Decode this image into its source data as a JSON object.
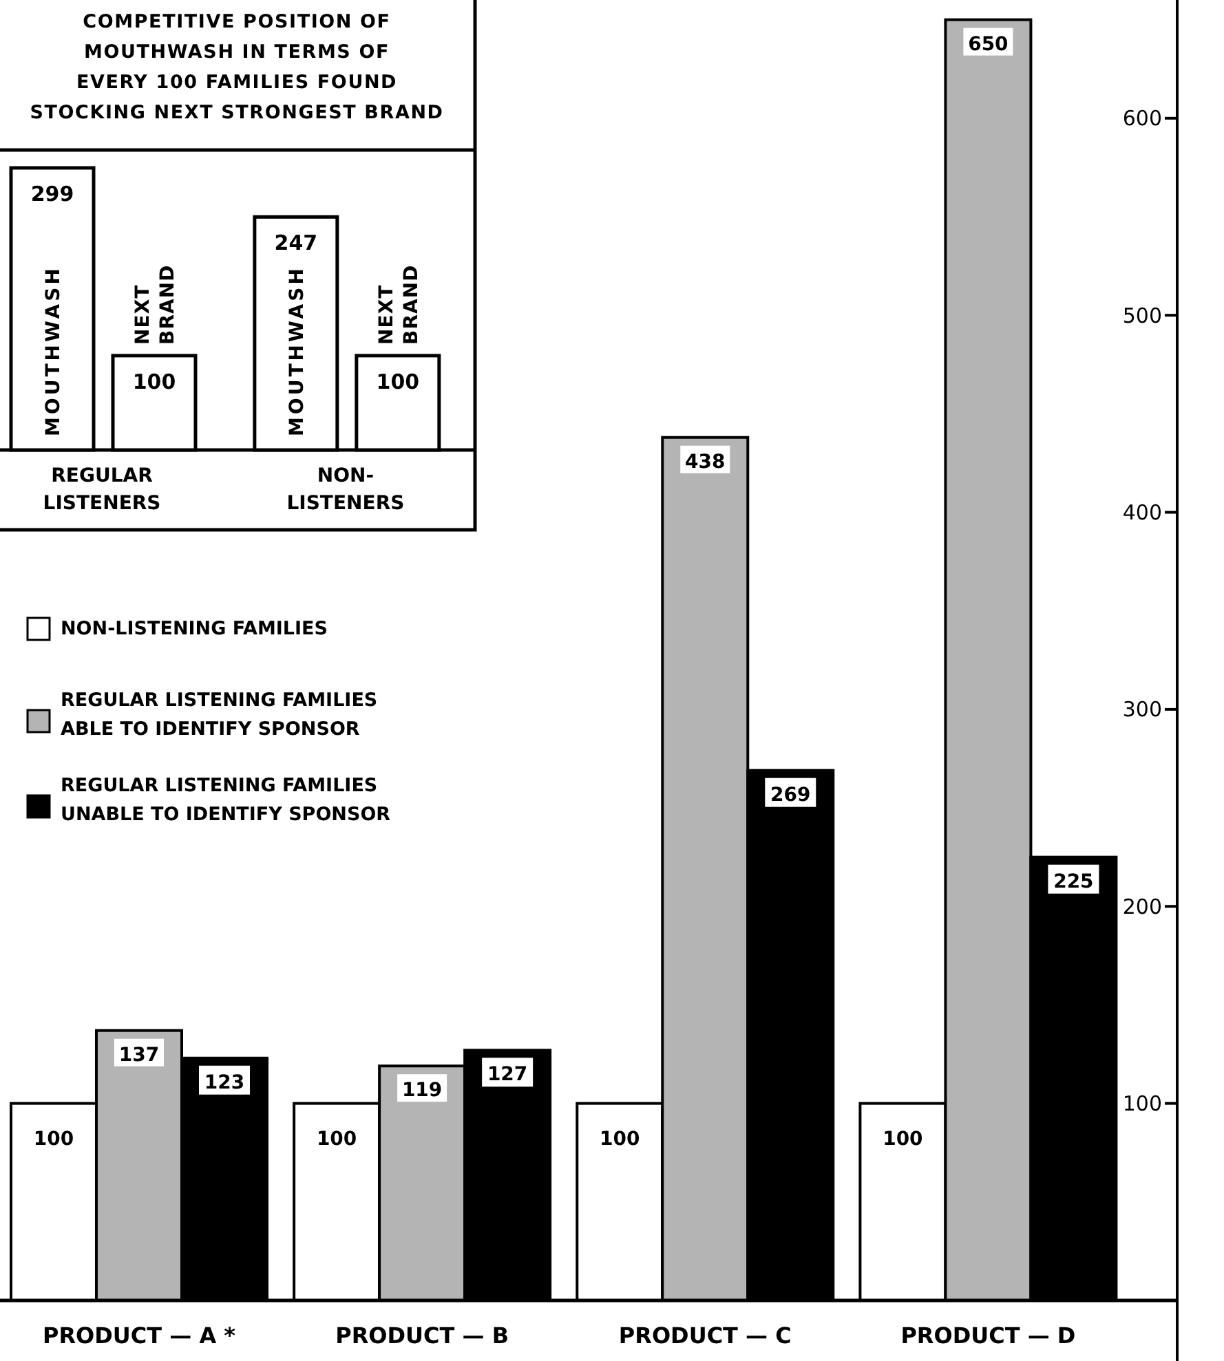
{
  "chart_data": [
    {
      "type": "bar",
      "categories": [
        "PRODUCT — A *",
        "PRODUCT — B",
        "PRODUCT — C",
        "PRODUCT — D"
      ],
      "series": [
        {
          "name": "NON-LISTENING FAMILIES",
          "color": "#ffffff",
          "values": [
            100,
            100,
            100,
            100
          ]
        },
        {
          "name": "REGULAR LISTENING FAMILIES ABLE TO IDENTIFY SPONSOR",
          "color": "#b4b4b4",
          "values": [
            137,
            119,
            438,
            650
          ]
        },
        {
          "name": "REGULAR LISTENING FAMILIES UNABLE TO IDENTIFY SPONSOR",
          "color": "#000000",
          "values": [
            123,
            127,
            269,
            225
          ]
        }
      ],
      "ylim": [
        0,
        660
      ],
      "yticks": [
        100,
        200,
        300,
        400,
        500,
        600
      ],
      "data_labels": true,
      "legend": "left"
    },
    {
      "type": "bar",
      "title": "COMPETITIVE POSITION OF\nMOUTHWASH IN TERMS OF\nEVERY 100 FAMILIES FOUND\nSTOCKING NEXT STRONGEST BRAND",
      "categories": [
        "REGULAR\nLISTENERS",
        "NON-\nLISTENERS"
      ],
      "series": [
        {
          "name": "MOUTHWASH",
          "color": "#ffffff",
          "values": [
            299,
            247
          ]
        },
        {
          "name": "NEXT BRAND",
          "color": "#ffffff",
          "values": [
            100,
            100
          ]
        }
      ],
      "data_labels": true
    }
  ]
}
